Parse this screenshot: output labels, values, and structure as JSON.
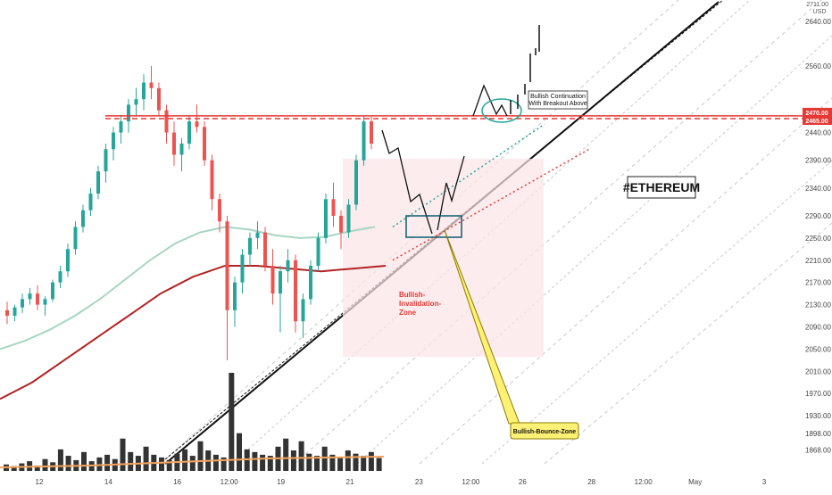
{
  "chart_data": {
    "type": "candlestick",
    "title": "",
    "symbol_tag": "#ETHEREUM",
    "currency": "USD",
    "price_axis": {
      "unit_label": "USD",
      "ylim": [
        1845,
        2750
      ],
      "ticks": [
        2640,
        2560,
        2440,
        2390,
        2340,
        2290,
        2250,
        2210,
        2170,
        2130,
        2090,
        2050,
        2010,
        1970,
        1930,
        1898,
        1868
      ],
      "top_label": "2711.00",
      "price_badges": [
        {
          "value": "2470.00",
          "color": "#e53935"
        },
        {
          "value": "2465.00",
          "color": "#e53935"
        }
      ]
    },
    "time_axis": {
      "labels": [
        {
          "text": "12",
          "t": 1
        },
        {
          "text": "14",
          "t": 3
        },
        {
          "text": "16",
          "t": 5
        },
        {
          "text": "12:00",
          "t": 6.5
        },
        {
          "text": "19",
          "t": 8
        },
        {
          "text": "21",
          "t": 10
        },
        {
          "text": "23",
          "t": 12
        },
        {
          "text": "12:00",
          "t": 13.5
        },
        {
          "text": "26",
          "t": 15
        },
        {
          "text": "28",
          "t": 17
        },
        {
          "text": "12:00",
          "t": 18.5
        },
        {
          "text": "May",
          "t": 20
        },
        {
          "text": "3",
          "t": 22
        }
      ]
    },
    "candles_ohlc_sample": [
      [
        2120,
        2135,
        2095,
        2110
      ],
      [
        2110,
        2130,
        2100,
        2125
      ],
      [
        2125,
        2150,
        2115,
        2140
      ],
      [
        2140,
        2160,
        2130,
        2150
      ],
      [
        2150,
        2165,
        2120,
        2130
      ],
      [
        2130,
        2145,
        2110,
        2140
      ],
      [
        2140,
        2175,
        2135,
        2170
      ],
      [
        2170,
        2200,
        2160,
        2190
      ],
      [
        2190,
        2240,
        2180,
        2230
      ],
      [
        2230,
        2280,
        2220,
        2270
      ],
      [
        2270,
        2310,
        2260,
        2300
      ],
      [
        2300,
        2340,
        2290,
        2330
      ],
      [
        2330,
        2380,
        2320,
        2370
      ],
      [
        2370,
        2420,
        2350,
        2410
      ],
      [
        2410,
        2450,
        2390,
        2440
      ],
      [
        2440,
        2470,
        2420,
        2460
      ],
      [
        2460,
        2500,
        2440,
        2490
      ],
      [
        2490,
        2520,
        2470,
        2500
      ],
      [
        2500,
        2545,
        2480,
        2530
      ],
      [
        2530,
        2560,
        2500,
        2520
      ],
      [
        2520,
        2530,
        2470,
        2480
      ],
      [
        2480,
        2490,
        2420,
        2440
      ],
      [
        2440,
        2460,
        2380,
        2400
      ],
      [
        2400,
        2430,
        2370,
        2420
      ],
      [
        2420,
        2470,
        2410,
        2460
      ],
      [
        2460,
        2490,
        2440,
        2450
      ],
      [
        2450,
        2460,
        2380,
        2390
      ],
      [
        2390,
        2400,
        2300,
        2320
      ],
      [
        2320,
        2330,
        2260,
        2280
      ],
      [
        2280,
        2290,
        2030,
        2120
      ],
      [
        2120,
        2180,
        2090,
        2170
      ],
      [
        2170,
        2230,
        2150,
        2220
      ],
      [
        2220,
        2260,
        2200,
        2250
      ],
      [
        2250,
        2280,
        2230,
        2260
      ],
      [
        2260,
        2270,
        2190,
        2200
      ],
      [
        2200,
        2230,
        2130,
        2150
      ],
      [
        2150,
        2200,
        2080,
        2190
      ],
      [
        2190,
        2230,
        2170,
        2210
      ],
      [
        2210,
        2220,
        2080,
        2100
      ],
      [
        2100,
        2150,
        2070,
        2140
      ],
      [
        2140,
        2210,
        2130,
        2200
      ],
      [
        2200,
        2260,
        2190,
        2250
      ],
      [
        2250,
        2330,
        2240,
        2320
      ],
      [
        2320,
        2350,
        2270,
        2290
      ],
      [
        2290,
        2300,
        2230,
        2260
      ],
      [
        2260,
        2320,
        2250,
        2310
      ],
      [
        2310,
        2400,
        2300,
        2390
      ],
      [
        2390,
        2470,
        2380,
        2460
      ],
      [
        2460,
        2470,
        2410,
        2420
      ]
    ],
    "volume_sample": [
      12,
      9,
      14,
      18,
      10,
      22,
      16,
      40,
      28,
      20,
      35,
      18,
      25,
      30,
      22,
      60,
      35,
      28,
      45,
      30,
      25,
      20,
      32,
      40,
      28,
      55,
      38,
      30,
      25,
      182,
      70,
      40,
      35,
      30,
      28,
      45,
      60,
      38,
      55,
      32,
      28,
      45,
      30,
      25,
      38,
      32,
      28,
      35,
      24
    ],
    "indicators": [
      {
        "name": "ma-short",
        "color": "#a8d5c2",
        "values": [
          2050,
          2065,
          2085,
          2110,
          2140,
          2175,
          2210,
          2240,
          2260,
          2270,
          2265,
          2255,
          2250,
          2252,
          2262,
          2270
        ]
      },
      {
        "name": "ma-long",
        "color": "#b22222",
        "values": [
          1960,
          1990,
          2030,
          2070,
          2110,
          2150,
          2180,
          2200,
          2200,
          2195,
          2190,
          2195,
          2200
        ]
      }
    ],
    "annotations": {
      "resistance_level": 2465,
      "bullish_continuation": "Bullish Continuation\nWith Breakout Above",
      "invalidation_zone": "Bullish-\nInvalidation-\nZone",
      "bounce_zone": "Bullish-Bounce-Zone",
      "projected_target": 2711
    }
  }
}
